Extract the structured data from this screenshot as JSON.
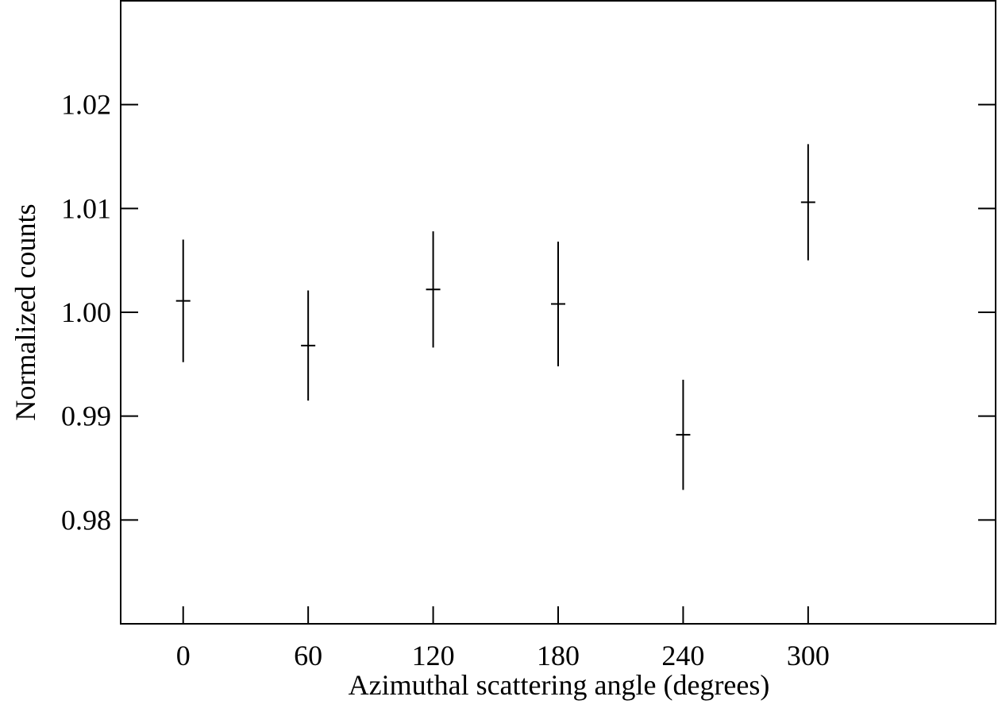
{
  "chart_data": {
    "type": "errorbar",
    "xlabel": "Azimuthal scattering angle (degrees)",
    "ylabel": "Normalized counts",
    "x": [
      0,
      60,
      120,
      180,
      240,
      300
    ],
    "values": [
      1.0011,
      0.9968,
      1.0022,
      1.0008,
      0.9882,
      1.0106
    ],
    "errors": [
      0.0059,
      0.0053,
      0.0056,
      0.006,
      0.0053,
      0.0056
    ],
    "color": "#000000",
    "xlim": [
      -30,
      390
    ],
    "xticks": [
      0,
      60,
      120,
      180,
      240,
      300
    ],
    "ylim": [
      0.97,
      1.03
    ],
    "yticks": [
      {
        "value": 0.98,
        "label": "0.98"
      },
      {
        "value": 0.99,
        "label": "0.99"
      },
      {
        "value": 1.0,
        "label": "1.00"
      },
      {
        "value": 1.01,
        "label": "1.01"
      },
      {
        "value": 1.02,
        "label": "1.02"
      }
    ]
  }
}
